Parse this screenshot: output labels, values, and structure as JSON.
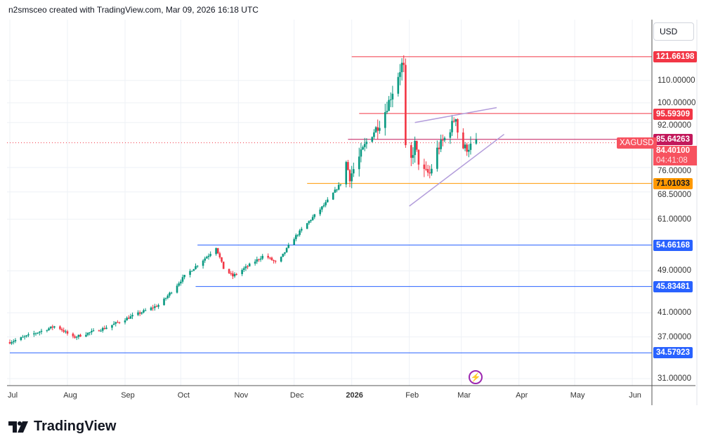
{
  "header": {
    "attribution": "n2smsceo created with TradingView.com, Mar 09, 2026 16:18 UTC"
  },
  "currency_button": "USD",
  "logo_text": "TradingView",
  "chart_data": {
    "type": "candlestick",
    "symbol": "XAGUSD",
    "countdown": "04:41:08",
    "last_price": "84.40100",
    "last_price_value": 84.401,
    "scale": "log",
    "ylim": [
      29.5,
      135
    ],
    "y_ticks": [
      "110.00000",
      "100.00000",
      "92.00000",
      "76.00000",
      "68.50000",
      "61.00000",
      "49.00000",
      "41.00000",
      "37.00000",
      "31.00000"
    ],
    "x_ticks": [
      {
        "label": "Jul",
        "date": "2025-07-01"
      },
      {
        "label": "Aug",
        "date": "2025-08-01"
      },
      {
        "label": "Sep",
        "date": "2025-09-01"
      },
      {
        "label": "Oct",
        "date": "2025-10-01"
      },
      {
        "label": "Nov",
        "date": "2025-11-01"
      },
      {
        "label": "Dec",
        "date": "2025-12-01"
      },
      {
        "label": "2026",
        "date": "2026-01-01",
        "bold": true
      },
      {
        "label": "Feb",
        "date": "2026-02-01"
      },
      {
        "label": "Mar",
        "date": "2026-03-01"
      },
      {
        "label": "Apr",
        "date": "2026-04-01"
      },
      {
        "label": "May",
        "date": "2026-05-01"
      },
      {
        "label": "Jun",
        "date": "2026-06-01"
      }
    ],
    "close_path": [
      [
        "2025-07-01",
        36.2
      ],
      [
        "2025-07-26",
        38.8
      ],
      [
        "2025-08-04",
        36.9
      ],
      [
        "2025-08-21",
        38.4
      ],
      [
        "2025-09-01",
        39.9
      ],
      [
        "2025-09-20",
        42.5
      ],
      [
        "2025-10-03",
        47.9
      ],
      [
        "2025-10-16",
        52.4
      ],
      [
        "2025-10-20",
        54.2
      ],
      [
        "2025-10-24",
        49.5
      ],
      [
        "2025-10-29",
        47.9
      ],
      [
        "2025-11-15",
        52.4
      ],
      [
        "2025-11-22",
        50.5
      ],
      [
        "2025-11-30",
        55.8
      ],
      [
        "2025-12-07",
        59.4
      ],
      [
        "2025-12-18",
        65.3
      ],
      [
        "2025-12-26",
        71.0
      ],
      [
        "2025-12-28",
        80.0
      ],
      [
        "2025-12-31",
        73.0
      ],
      [
        "2026-01-10",
        86.0
      ],
      [
        "2026-01-17",
        92.5
      ],
      [
        "2026-01-23",
        105.0
      ],
      [
        "2026-01-28",
        117.7
      ],
      [
        "2026-01-29",
        116.0
      ],
      [
        "2026-01-30",
        82.0
      ],
      [
        "2026-02-02",
        78.5
      ],
      [
        "2026-02-04",
        84.0
      ],
      [
        "2026-02-07",
        75.0
      ],
      [
        "2026-02-12",
        74.0
      ],
      [
        "2026-02-16",
        82.0
      ],
      [
        "2026-02-22",
        88.0
      ],
      [
        "2026-02-26",
        94.6
      ],
      [
        "2026-02-28",
        83.0
      ],
      [
        "2026-03-04",
        82.5
      ],
      [
        "2026-03-09",
        84.4
      ]
    ],
    "levels": [
      {
        "value": 121.66198,
        "label": "121.66198",
        "color": "#f23645",
        "from": "2026-01-01"
      },
      {
        "value": 95.59309,
        "label": "95.59309",
        "color": "#f23645",
        "from": "2026-01-05"
      },
      {
        "value": 85.64263,
        "label": "85.64263",
        "color": "#c2185b",
        "from": "2025-12-30"
      },
      {
        "value": 71.01033,
        "label": "71.01033",
        "color": "#ff9800",
        "from": "2025-12-08"
      },
      {
        "value": 54.66168,
        "label": "54.66168",
        "color": "#2962ff",
        "from": "2025-10-10"
      },
      {
        "value": 45.83481,
        "label": "45.83481",
        "color": "#2962ff",
        "from": "2025-10-09"
      },
      {
        "value": 34.57923,
        "label": "34.57923",
        "color": "#2962ff",
        "from": "2025-07-01"
      }
    ],
    "trendlines": [
      {
        "from": [
          "2026-02-04",
          92.0
        ],
        "to": [
          "2026-03-20",
          98.0
        ],
        "color": "#b39ddb"
      },
      {
        "from": [
          "2026-02-01",
          64.5
        ],
        "to": [
          "2026-03-24",
          87.5
        ],
        "color": "#b39ddb"
      }
    ],
    "colors": {
      "up": "#089981",
      "down": "#f23645"
    }
  }
}
